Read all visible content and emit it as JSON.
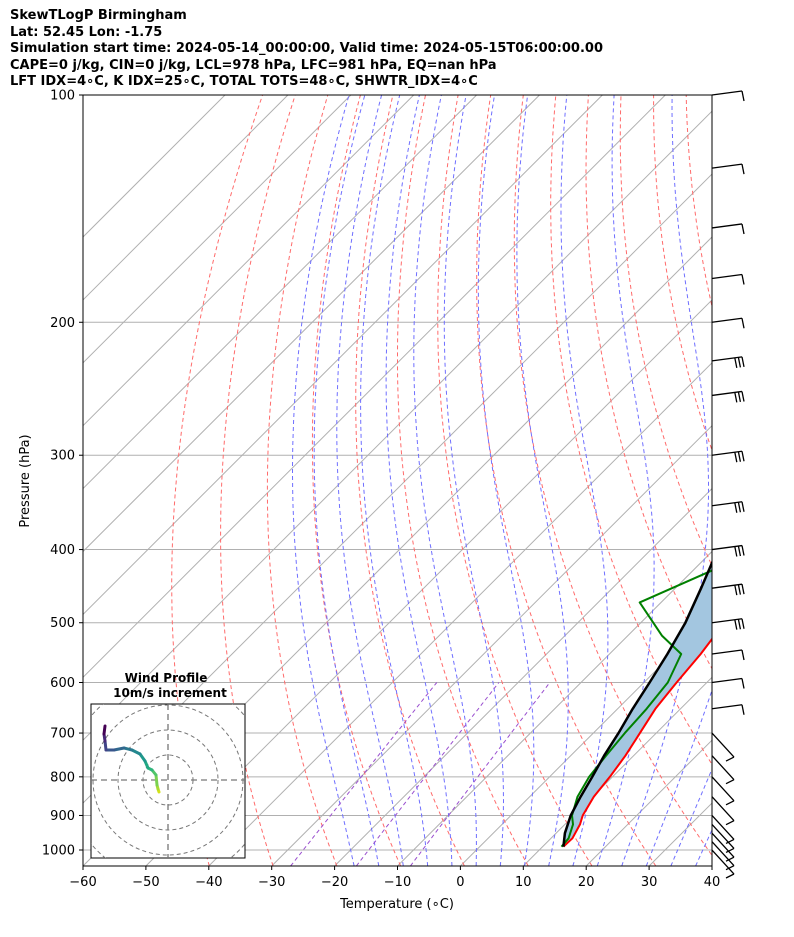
{
  "header": {
    "line1": "SkewTLogP Birmingham",
    "line2": "Lat: 52.45   Lon: -1.75",
    "line3": "Simulation start time: 2024-05-14_00:00:00, Valid time: 2024-05-15T06:00:00.00",
    "line4": "CAPE=0 j/kg, CIN=0 j/kg, LCL=978 hPa, LFC=981 hPa, EQ=nan hPa",
    "line5": "LFT IDX=4∘C, K IDX=25∘C, TOTAL TOTS=48∘C, SHWTR_IDX=4∘C"
  },
  "chart_data": {
    "type": "line",
    "subtype": "skew-t log-p",
    "xlabel": "Temperature (∘C)",
    "ylabel": "Pressure (hPa)",
    "xlim": [
      -60,
      40
    ],
    "ylim": [
      1050,
      100
    ],
    "yscale": "log",
    "grid": true,
    "x_ticks": [
      -60,
      -50,
      -40,
      -30,
      -20,
      -10,
      0,
      10,
      20,
      30,
      40
    ],
    "x_tick_labels": [
      "−60",
      "−50",
      "−40",
      "−30",
      "−20",
      "−10",
      "0",
      "10",
      "20",
      "30",
      "40"
    ],
    "y_ticks": [
      1000,
      900,
      800,
      700,
      600,
      500,
      400,
      300,
      200,
      100
    ],
    "y_tick_labels": [
      "1000",
      "900",
      "800",
      "700",
      "600",
      "500",
      "400",
      "300",
      "200",
      "100"
    ],
    "colors": {
      "temperature": "#ff0000",
      "dewpoint": "#008000",
      "parcel": "#000000",
      "cape_fill": "#a3c6e0",
      "dry_adiabat": "#ff6b6b",
      "moist_adiabat": "#6f6fff",
      "mixing_ratio": "#9a4fcf",
      "isotherm": "#b0b0b0"
    },
    "series": [
      {
        "key": "temperature",
        "points": [
          [
            990,
            13.3
          ],
          [
            965,
            13.4
          ],
          [
            925,
            12.4
          ],
          [
            900,
            11.4
          ],
          [
            850,
            10.2
          ],
          [
            800,
            9.6
          ],
          [
            750,
            8.7
          ],
          [
            700,
            7.4
          ],
          [
            650,
            6.0
          ],
          [
            600,
            5.2
          ],
          [
            550,
            4.5
          ],
          [
            500,
            3.3
          ],
          [
            450,
            3.0
          ],
          [
            400,
            0.6
          ],
          [
            360,
            -1.2
          ],
          [
            340,
            -2.2
          ],
          [
            300,
            -3.3
          ],
          [
            270,
            -5.4
          ],
          [
            250,
            -6.4
          ],
          [
            230,
            -7.6
          ],
          [
            210,
            -8.1
          ],
          [
            195,
            -8.5
          ],
          [
            180,
            -8.0
          ],
          [
            165,
            -7.2
          ],
          [
            150,
            -6.4
          ],
          [
            135,
            -6.0
          ],
          [
            120,
            -6.3
          ],
          [
            110,
            -6.9
          ],
          [
            100,
            -8.1
          ]
        ]
      },
      {
        "key": "dewpoint",
        "points": [
          [
            990,
            13.0
          ],
          [
            965,
            12.8
          ],
          [
            925,
            11.3
          ],
          [
            900,
            9.7
          ],
          [
            850,
            7.6
          ],
          [
            800,
            6.3
          ],
          [
            750,
            5.6
          ],
          [
            700,
            5.0
          ],
          [
            650,
            4.6
          ],
          [
            600,
            3.8
          ],
          [
            550,
            1.4
          ],
          [
            520,
            -4.6
          ],
          [
            470,
            -13.4
          ],
          [
            420,
            -6.0
          ],
          [
            390,
            -7.8
          ],
          [
            360,
            -10.0
          ],
          [
            330,
            -13.4
          ],
          [
            310,
            -15.1
          ],
          [
            290,
            -14.9
          ],
          [
            260,
            -17.9
          ],
          [
            230,
            -20.5
          ],
          [
            200,
            -24.8
          ],
          [
            185,
            -26.3
          ],
          [
            170,
            -28.9
          ],
          [
            150,
            -29.3
          ],
          [
            130,
            -29.4
          ],
          [
            110,
            -30.0
          ],
          [
            100,
            -31.0
          ]
        ]
      },
      {
        "key": "parcel",
        "points": [
          [
            990,
            13.3
          ],
          [
            950,
            11.4
          ],
          [
            900,
            9.5
          ],
          [
            850,
            8.1
          ],
          [
            800,
            6.8
          ],
          [
            750,
            5.3
          ],
          [
            700,
            4.0
          ],
          [
            650,
            2.4
          ],
          [
            600,
            0.9
          ],
          [
            550,
            -0.8
          ],
          [
            500,
            -2.9
          ],
          [
            450,
            -5.9
          ],
          [
            400,
            -9.4
          ],
          [
            350,
            -13.6
          ],
          [
            300,
            -18.3
          ],
          [
            250,
            -23.6
          ],
          [
            200,
            -29.7
          ],
          [
            150,
            -36.8
          ],
          [
            120,
            -40.4
          ],
          [
            100,
            -43.2
          ]
        ]
      }
    ],
    "wind_barbs": {
      "pressures": [
        1000,
        975,
        950,
        925,
        900,
        850,
        800,
        750,
        700,
        650,
        600,
        550,
        500,
        450,
        400,
        350,
        300,
        250,
        225,
        200,
        175,
        150,
        125,
        100
      ]
    },
    "inset": {
      "title": "Wind Profile",
      "subtitle": "10m/s increment",
      "hodograph": [
        [
          -0.9,
          -1.2
        ],
        [
          -1.0,
          -0.9
        ],
        [
          -1.1,
          -0.5
        ],
        [
          -1.2,
          0.5
        ],
        [
          -1.6,
          1.0
        ],
        [
          -2.0,
          1.2
        ],
        [
          -2.3,
          1.9
        ],
        [
          -2.8,
          2.6
        ],
        [
          -3.6,
          3.0
        ],
        [
          -4.4,
          3.2
        ],
        [
          -5.4,
          3.0
        ],
        [
          -6.2,
          3.0
        ],
        [
          -6.3,
          3.9
        ],
        [
          -6.4,
          4.6
        ],
        [
          -6.3,
          5.4
        ]
      ]
    }
  }
}
